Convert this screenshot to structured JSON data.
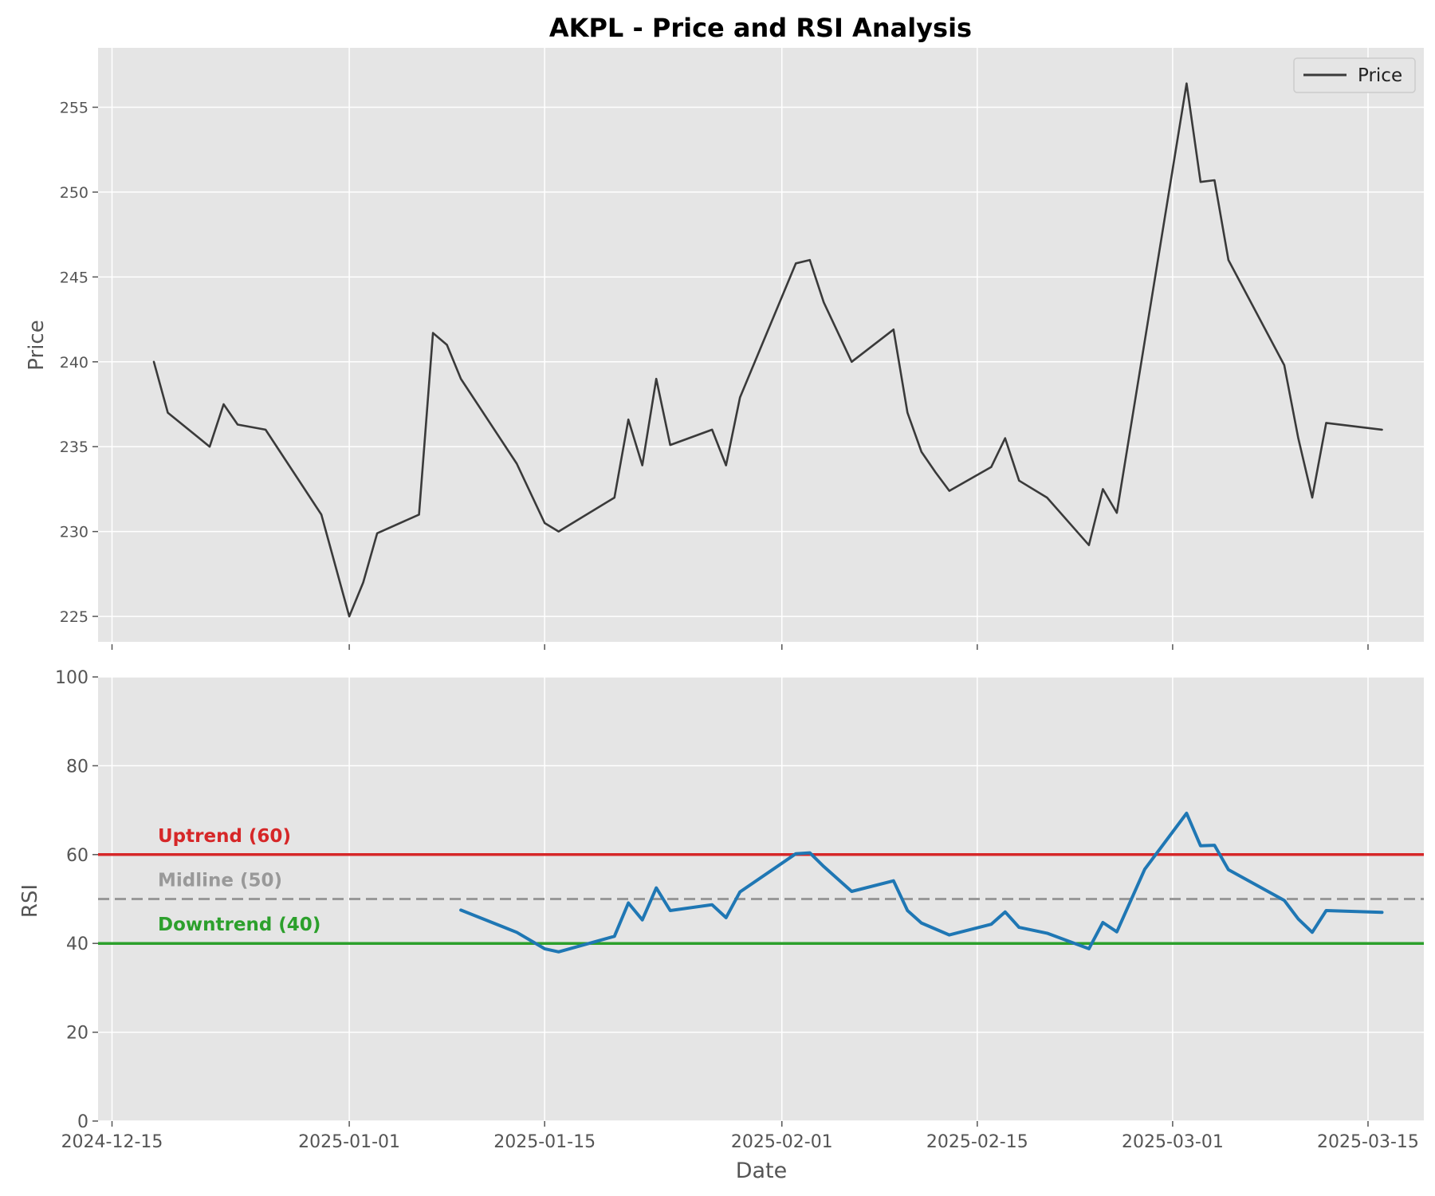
{
  "chart_data": [
    {
      "type": "line",
      "title": "AKPL - Price and RSI Analysis",
      "xlabel": "",
      "ylabel": "Price",
      "ylim": [
        223.5,
        258.5
      ],
      "yticks": [
        225,
        230,
        235,
        240,
        245,
        250,
        255
      ],
      "xlim": [
        "2024-12-14",
        "2025-03-19"
      ],
      "grid": true,
      "legend": {
        "position": "top-right",
        "entries": [
          "Price"
        ]
      },
      "series": [
        {
          "name": "Price",
          "color": "#3a3a3a",
          "points": [
            [
              "2024-12-18",
              240.0
            ],
            [
              "2024-12-19",
              237.0
            ],
            [
              "2024-12-22",
              235.0
            ],
            [
              "2024-12-23",
              237.5
            ],
            [
              "2024-12-24",
              236.3
            ],
            [
              "2024-12-26",
              236.0
            ],
            [
              "2024-12-30",
              231.0
            ],
            [
              "2025-01-01",
              225.0
            ],
            [
              "2025-01-02",
              227.0
            ],
            [
              "2025-01-03",
              229.9
            ],
            [
              "2025-01-06",
              231.0
            ],
            [
              "2025-01-07",
              241.7
            ],
            [
              "2025-01-08",
              241.0
            ],
            [
              "2025-01-09",
              239.0
            ],
            [
              "2025-01-13",
              234.0
            ],
            [
              "2025-01-15",
              230.5
            ],
            [
              "2025-01-16",
              230.0
            ],
            [
              "2025-01-20",
              232.0
            ],
            [
              "2025-01-21",
              236.6
            ],
            [
              "2025-01-22",
              233.9
            ],
            [
              "2025-01-23",
              239.0
            ],
            [
              "2025-01-24",
              235.1
            ],
            [
              "2025-01-27",
              236.0
            ],
            [
              "2025-01-28",
              233.9
            ],
            [
              "2025-01-29",
              237.9
            ],
            [
              "2025-02-02",
              245.8
            ],
            [
              "2025-02-03",
              246.0
            ],
            [
              "2025-02-04",
              243.5
            ],
            [
              "2025-02-06",
              240.0
            ],
            [
              "2025-02-09",
              241.9
            ],
            [
              "2025-02-10",
              237.0
            ],
            [
              "2025-02-11",
              234.7
            ],
            [
              "2025-02-12",
              233.5
            ],
            [
              "2025-02-13",
              232.4
            ],
            [
              "2025-02-16",
              233.8
            ],
            [
              "2025-02-17",
              235.5
            ],
            [
              "2025-02-18",
              233.0
            ],
            [
              "2025-02-20",
              232.0
            ],
            [
              "2025-02-23",
              229.2
            ],
            [
              "2025-02-24",
              232.5
            ],
            [
              "2025-02-25",
              231.1
            ],
            [
              "2025-03-02",
              256.4
            ],
            [
              "2025-03-03",
              250.6
            ],
            [
              "2025-03-04",
              250.7
            ],
            [
              "2025-03-05",
              246.0
            ],
            [
              "2025-03-09",
              239.8
            ],
            [
              "2025-03-10",
              235.5
            ],
            [
              "2025-03-11",
              232.0
            ],
            [
              "2025-03-12",
              236.4
            ],
            [
              "2025-03-16",
              236.0
            ]
          ]
        }
      ]
    },
    {
      "type": "line",
      "title": "",
      "xlabel": "Date",
      "ylabel": "RSI",
      "ylim": [
        0,
        100
      ],
      "yticks": [
        0,
        20,
        40,
        60,
        80,
        100
      ],
      "xlim": [
        "2024-12-14",
        "2025-03-19"
      ],
      "xticks": [
        "2024-12-15",
        "2025-01-01",
        "2025-01-15",
        "2025-02-01",
        "2025-02-15",
        "2025-03-01",
        "2025-03-15"
      ],
      "grid": true,
      "series": [
        {
          "name": "",
          "color": "#1f77b4",
          "points": [
            [
              "2025-01-09",
              47.5
            ],
            [
              "2025-01-13",
              42.5
            ],
            [
              "2025-01-15",
              38.8
            ],
            [
              "2025-01-16",
              38.1
            ],
            [
              "2025-01-20",
              41.6
            ],
            [
              "2025-01-21",
              49.1
            ],
            [
              "2025-01-22",
              45.3
            ],
            [
              "2025-01-23",
              52.5
            ],
            [
              "2025-01-24",
              47.4
            ],
            [
              "2025-01-27",
              48.7
            ],
            [
              "2025-01-28",
              45.8
            ],
            [
              "2025-01-29",
              51.6
            ],
            [
              "2025-02-02",
              60.2
            ],
            [
              "2025-02-03",
              60.4
            ],
            [
              "2025-02-04",
              57.3
            ],
            [
              "2025-02-06",
              51.7
            ],
            [
              "2025-02-09",
              54.1
            ],
            [
              "2025-02-10",
              47.4
            ],
            [
              "2025-02-11",
              44.6
            ],
            [
              "2025-02-13",
              41.9
            ],
            [
              "2025-02-16",
              44.3
            ],
            [
              "2025-02-17",
              47.1
            ],
            [
              "2025-02-18",
              43.6
            ],
            [
              "2025-02-20",
              42.3
            ],
            [
              "2025-02-23",
              38.8
            ],
            [
              "2025-02-24",
              44.7
            ],
            [
              "2025-02-25",
              42.6
            ],
            [
              "2025-02-27",
              56.7
            ],
            [
              "2025-03-02",
              69.3
            ],
            [
              "2025-03-03",
              62.0
            ],
            [
              "2025-03-04",
              62.1
            ],
            [
              "2025-03-05",
              56.6
            ],
            [
              "2025-03-09",
              49.7
            ],
            [
              "2025-03-10",
              45.5
            ],
            [
              "2025-03-11",
              42.5
            ],
            [
              "2025-03-12",
              47.4
            ],
            [
              "2025-03-16",
              47.0
            ]
          ]
        }
      ],
      "reference_lines": [
        {
          "label": "Uptrend (60)",
          "value": 60,
          "color": "#d62728",
          "style": "solid"
        },
        {
          "label": "Midline (50)",
          "value": 50,
          "color": "#999999",
          "style": "dashed"
        },
        {
          "label": "Downtrend (40)",
          "value": 40,
          "color": "#2ca02c",
          "style": "solid"
        }
      ]
    }
  ]
}
